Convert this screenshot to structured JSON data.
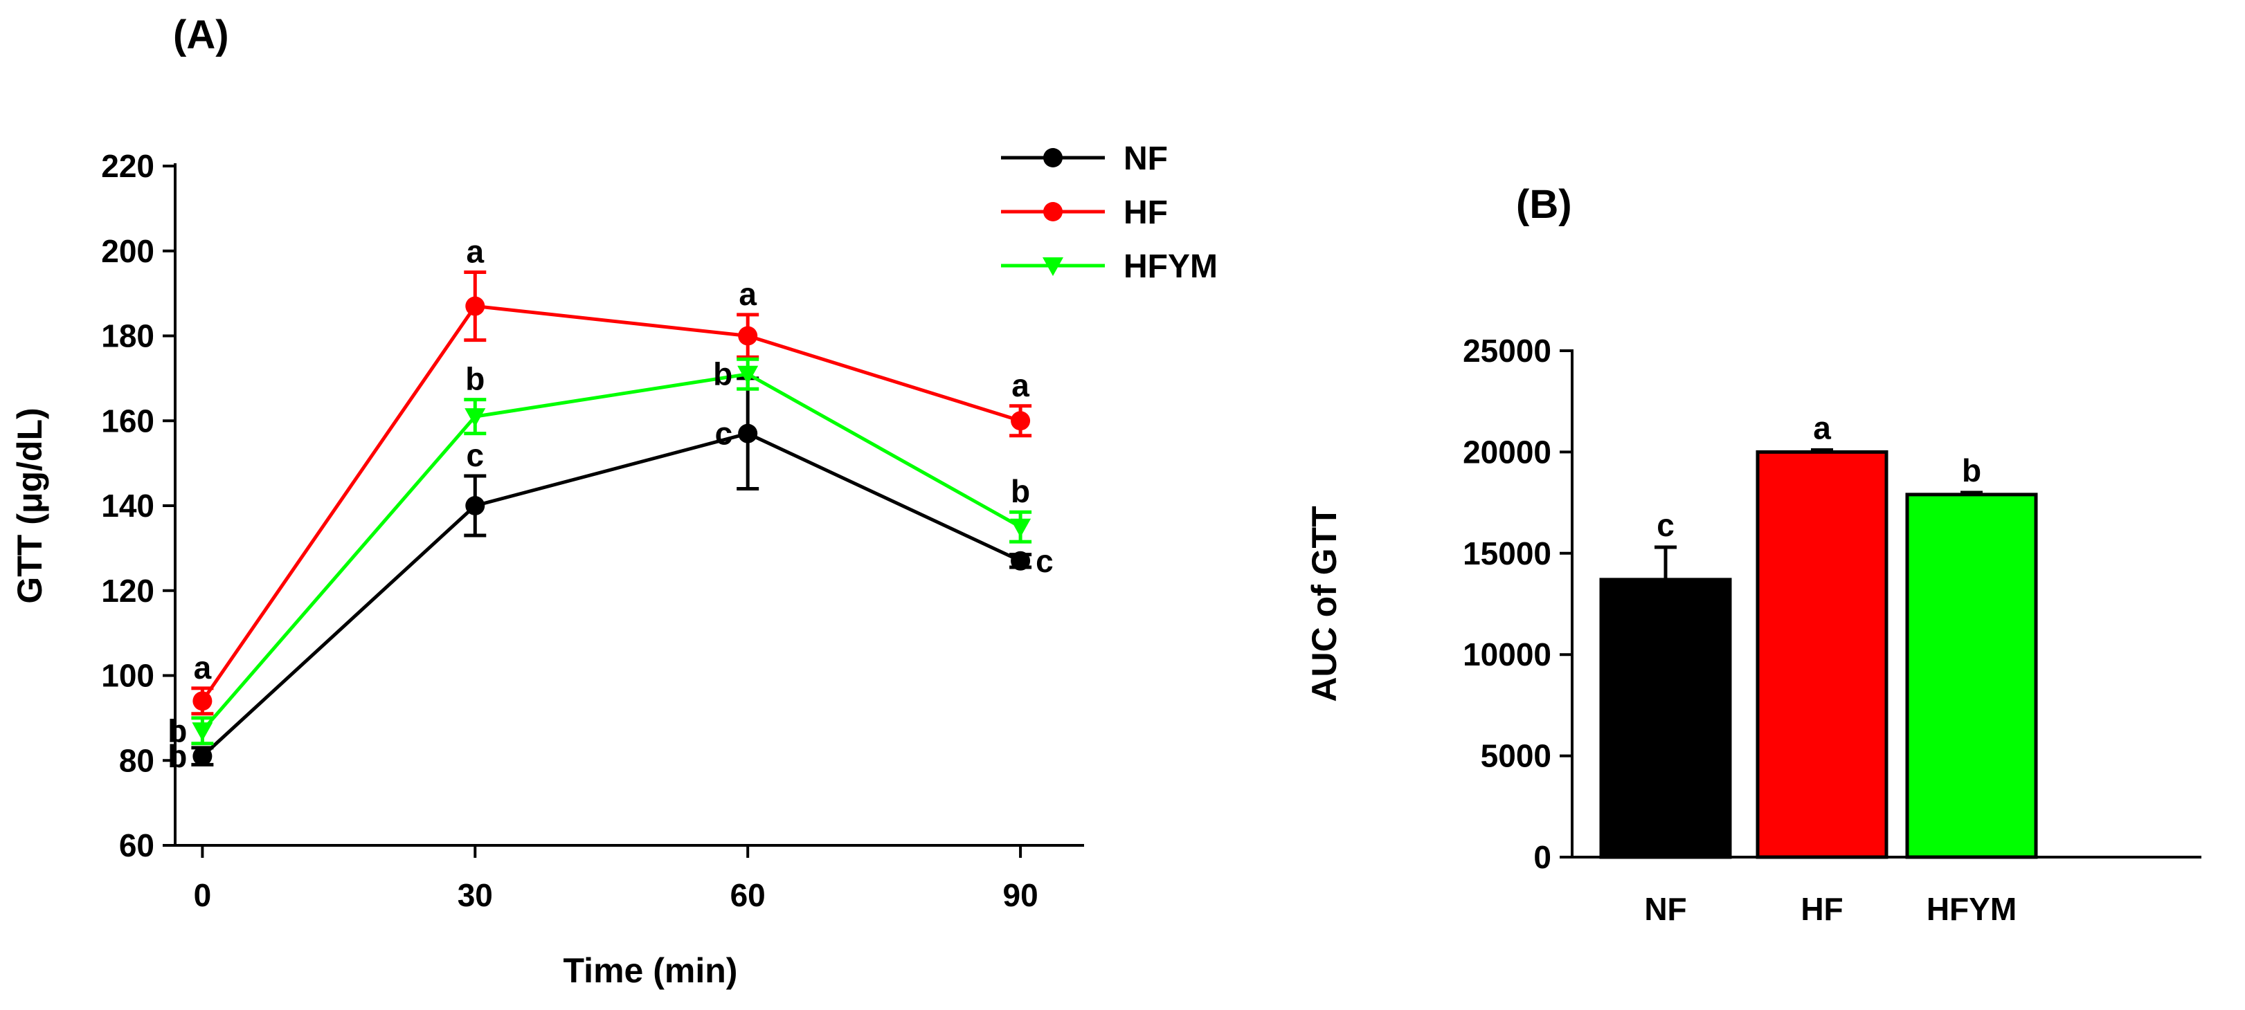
{
  "panels": {
    "a_label": "(A)",
    "b_label": "(B)"
  },
  "chart_data": [
    {
      "type": "line",
      "panel": "(A)",
      "xlabel": "Time (min)",
      "ylabel": "GTT (μg/dL)",
      "x": [
        0,
        30,
        60,
        90
      ],
      "x_tick_labels": [
        "0",
        "30",
        "60",
        "90"
      ],
      "xlim": [
        -3,
        97
      ],
      "ylim": [
        60,
        220
      ],
      "y_ticks": [
        60,
        80,
        100,
        120,
        140,
        160,
        180,
        200,
        220
      ],
      "legend_position": "top-right",
      "series": [
        {
          "name": "NF",
          "color": "#000000",
          "marker": "circle",
          "values": [
            81,
            140,
            157,
            127
          ],
          "errors": [
            2,
            7,
            13,
            1.5
          ],
          "letters": [
            "b",
            "c",
            "c",
            "c"
          ],
          "letter_side": [
            "left",
            "above",
            "left",
            "right"
          ]
        },
        {
          "name": "HF",
          "color": "#ff0000",
          "marker": "circle",
          "values": [
            94,
            187,
            180,
            160
          ],
          "errors": [
            3,
            8,
            5,
            3.5
          ],
          "letters": [
            "a",
            "a",
            "a",
            "a"
          ],
          "letter_side": [
            "above",
            "above",
            "above",
            "above"
          ]
        },
        {
          "name": "HFYM",
          "color": "#00ff00",
          "marker": "triangle-down",
          "values": [
            87,
            161,
            171,
            135
          ],
          "errors": [
            3,
            4,
            3.5,
            3.5
          ],
          "letters": [
            "b",
            "b",
            "b",
            "b"
          ],
          "letter_side": [
            "left",
            "above",
            "left",
            "above"
          ]
        }
      ]
    },
    {
      "type": "bar",
      "panel": "(B)",
      "xlabel": "",
      "ylabel": "AUC of GTT",
      "categories": [
        "NF",
        "HF",
        "HFYM"
      ],
      "values": [
        13700,
        20000,
        17900
      ],
      "errors": [
        1600,
        100,
        100
      ],
      "letters": [
        "c",
        "a",
        "b"
      ],
      "colors": [
        "#000000",
        "#ff0000",
        "#00ff00"
      ],
      "ylim": [
        0,
        25000
      ],
      "y_ticks": [
        0,
        5000,
        10000,
        15000,
        20000,
        25000
      ]
    }
  ]
}
